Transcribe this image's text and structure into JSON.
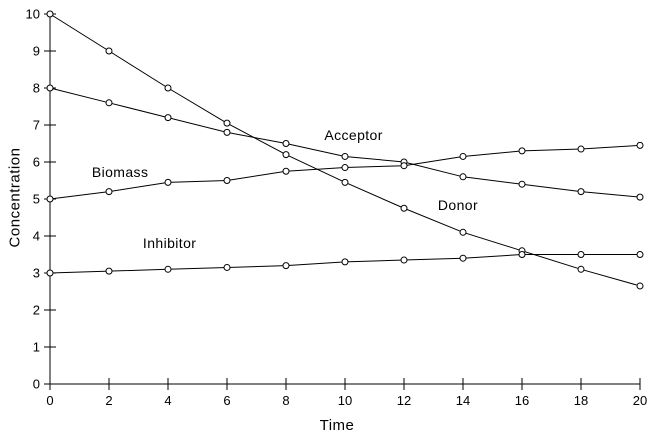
{
  "chart_data": {
    "type": "line",
    "title": "",
    "xlabel": "Time",
    "ylabel": "Concentration",
    "xlim": [
      0,
      20
    ],
    "ylim": [
      0,
      10
    ],
    "x_ticks": [
      0,
      2,
      4,
      6,
      8,
      10,
      12,
      14,
      16,
      18,
      20
    ],
    "y_ticks": [
      0,
      1,
      2,
      3,
      4,
      5,
      6,
      7,
      8,
      9,
      10
    ],
    "grid": false,
    "legend_position": "inline-annotations",
    "marker": "open-circle",
    "line_color": "#000000",
    "marker_fill": "#ffffff",
    "background": "#ffffff",
    "x": [
      0,
      2,
      4,
      6,
      8,
      10,
      12,
      14,
      16,
      18,
      20
    ],
    "series": [
      {
        "name": "Donor",
        "values": [
          10.0,
          9.0,
          8.0,
          7.05,
          6.2,
          5.45,
          4.75,
          4.1,
          3.6,
          3.1,
          2.65
        ],
        "label_pos": {
          "x": 13.15,
          "y": 4.7
        }
      },
      {
        "name": "Acceptor",
        "values": [
          8.0,
          7.6,
          7.2,
          6.8,
          6.5,
          6.15,
          6.0,
          5.6,
          5.4,
          5.2,
          5.05
        ],
        "label_pos": {
          "x": 9.3,
          "y": 6.6
        }
      },
      {
        "name": "Biomass",
        "values": [
          5.0,
          5.2,
          5.45,
          5.5,
          5.75,
          5.85,
          5.9,
          6.15,
          6.3,
          6.35,
          6.45
        ],
        "label_pos": {
          "x": 1.42,
          "y": 5.6
        }
      },
      {
        "name": "Inhibitor",
        "values": [
          3.0,
          3.05,
          3.1,
          3.15,
          3.2,
          3.3,
          3.35,
          3.4,
          3.5,
          3.5,
          3.5
        ],
        "label_pos": {
          "x": 3.15,
          "y": 3.67
        }
      }
    ]
  }
}
